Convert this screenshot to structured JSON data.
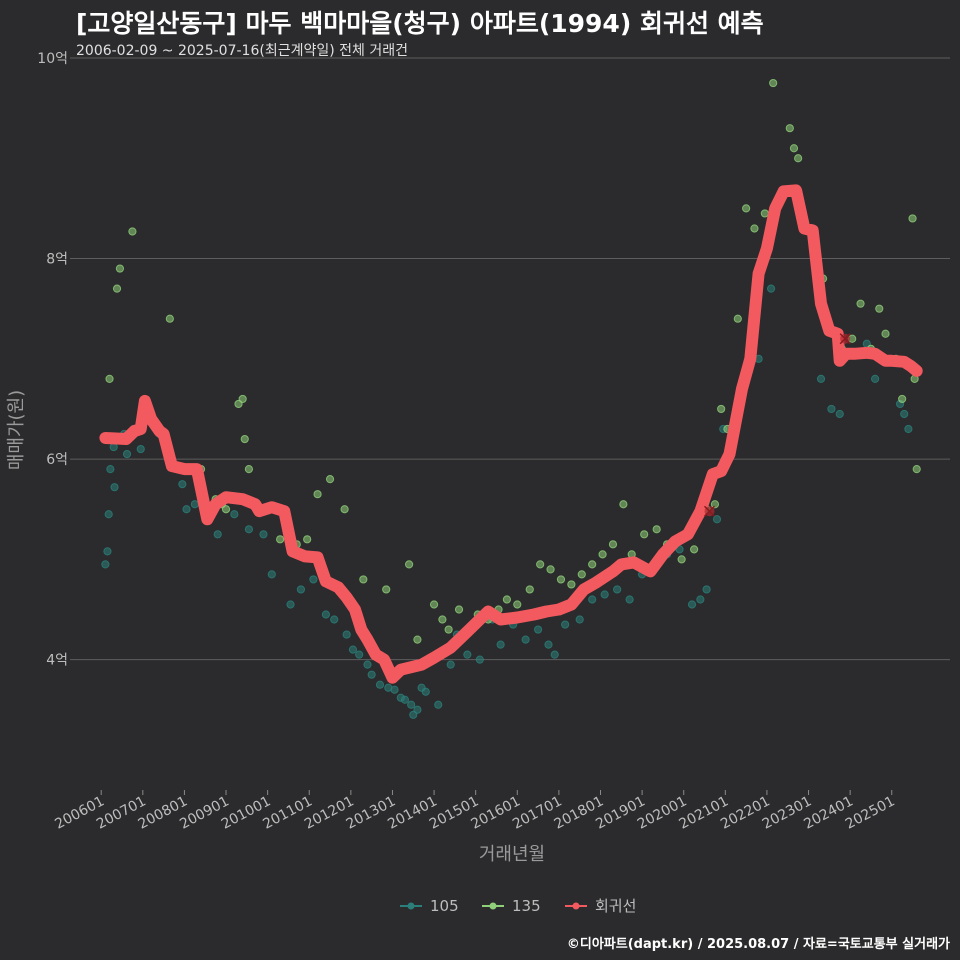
{
  "chart_data": {
    "type": "scatter",
    "title": "[고양일산동구] 마두 백마마을(청구) 아파트(1994) 회귀선 예측",
    "subtitle": "2006-02-09 ~ 2025-07-16(최근계약일) 전체 거래건",
    "xlabel": "거래년월",
    "ylabel": "매매가(원)",
    "ylim": [
      2.7,
      10.0
    ],
    "y_ticks": [
      4,
      6,
      8,
      10
    ],
    "y_tick_labels": [
      "4억",
      "6억",
      "8억",
      "10억"
    ],
    "x_tick_labels": [
      "200601",
      "200701",
      "200801",
      "200901",
      "201001",
      "201101",
      "201201",
      "201301",
      "201401",
      "201501",
      "201601",
      "201701",
      "201801",
      "201901",
      "202001",
      "202101",
      "202201",
      "202301",
      "202401",
      "202501"
    ],
    "colors": {
      "s105": "#2a7f7a",
      "s135": "#8fcf7a",
      "trend": "#f25a5f",
      "grid": "#5e5e5e",
      "background": "#2b2a2c"
    },
    "legend": [
      {
        "key": "s105",
        "label": "105"
      },
      {
        "key": "s135",
        "label": "135"
      },
      {
        "key": "trend",
        "label": "회귀선"
      }
    ],
    "legend_position": "bottom",
    "series": [
      {
        "name": "105",
        "key": "s105",
        "points": [
          [
            2006.1,
            4.95
          ],
          [
            2006.15,
            5.08
          ],
          [
            2006.18,
            5.45
          ],
          [
            2006.22,
            5.9
          ],
          [
            2006.3,
            6.12
          ],
          [
            2006.32,
            5.72
          ],
          [
            2006.55,
            6.25
          ],
          [
            2006.62,
            6.05
          ],
          [
            2006.78,
            6.3
          ],
          [
            2006.95,
            6.1
          ],
          [
            2007.4,
            6.25
          ],
          [
            2007.7,
            5.95
          ],
          [
            2007.95,
            5.75
          ],
          [
            2008.05,
            5.5
          ],
          [
            2008.25,
            5.55
          ],
          [
            2008.8,
            5.25
          ],
          [
            2009.2,
            5.45
          ],
          [
            2009.55,
            5.3
          ],
          [
            2009.9,
            5.25
          ],
          [
            2010.1,
            4.85
          ],
          [
            2010.55,
            4.55
          ],
          [
            2010.8,
            4.7
          ],
          [
            2011.1,
            4.8
          ],
          [
            2011.4,
            4.45
          ],
          [
            2011.6,
            4.4
          ],
          [
            2011.9,
            4.25
          ],
          [
            2012.05,
            4.1
          ],
          [
            2012.2,
            4.05
          ],
          [
            2012.4,
            3.95
          ],
          [
            2012.5,
            3.85
          ],
          [
            2012.7,
            3.75
          ],
          [
            2012.9,
            3.72
          ],
          [
            2013.05,
            3.7
          ],
          [
            2013.2,
            3.62
          ],
          [
            2013.3,
            3.6
          ],
          [
            2013.45,
            3.55
          ],
          [
            2013.5,
            3.45
          ],
          [
            2013.6,
            3.5
          ],
          [
            2013.7,
            3.72
          ],
          [
            2013.8,
            3.68
          ],
          [
            2014.1,
            3.55
          ],
          [
            2014.4,
            3.95
          ],
          [
            2014.55,
            4.25
          ],
          [
            2014.8,
            4.05
          ],
          [
            2015.1,
            4.0
          ],
          [
            2015.4,
            4.4
          ],
          [
            2015.6,
            4.15
          ],
          [
            2015.9,
            4.35
          ],
          [
            2016.2,
            4.2
          ],
          [
            2016.5,
            4.3
          ],
          [
            2016.75,
            4.15
          ],
          [
            2016.9,
            4.05
          ],
          [
            2017.15,
            4.35
          ],
          [
            2017.5,
            4.4
          ],
          [
            2017.8,
            4.6
          ],
          [
            2018.1,
            4.65
          ],
          [
            2018.4,
            4.7
          ],
          [
            2018.7,
            4.6
          ],
          [
            2019.0,
            4.85
          ],
          [
            2019.3,
            4.95
          ],
          [
            2019.6,
            5.05
          ],
          [
            2019.9,
            5.1
          ],
          [
            2020.2,
            4.55
          ],
          [
            2020.4,
            4.6
          ],
          [
            2020.55,
            4.7
          ],
          [
            2020.8,
            5.4
          ],
          [
            2020.95,
            6.3
          ],
          [
            2021.5,
            6.8
          ],
          [
            2021.8,
            7.0
          ],
          [
            2022.05,
            8.2
          ],
          [
            2022.1,
            7.7
          ],
          [
            2023.3,
            6.8
          ],
          [
            2023.55,
            6.5
          ],
          [
            2023.75,
            6.45
          ],
          [
            2024.4,
            7.15
          ],
          [
            2024.6,
            6.8
          ],
          [
            2025.2,
            6.55
          ],
          [
            2025.3,
            6.45
          ],
          [
            2025.4,
            6.3
          ]
        ]
      },
      {
        "name": "135",
        "key": "s135",
        "points": [
          [
            2006.2,
            6.8
          ],
          [
            2006.38,
            7.7
          ],
          [
            2006.45,
            7.9
          ],
          [
            2006.75,
            8.27
          ],
          [
            2007.65,
            7.4
          ],
          [
            2008.4,
            5.9
          ],
          [
            2008.75,
            5.6
          ],
          [
            2008.9,
            5.55
          ],
          [
            2009.0,
            5.5
          ],
          [
            2009.3,
            6.55
          ],
          [
            2009.4,
            6.6
          ],
          [
            2009.45,
            6.2
          ],
          [
            2009.55,
            5.9
          ],
          [
            2010.0,
            5.5
          ],
          [
            2010.3,
            5.2
          ],
          [
            2010.7,
            5.15
          ],
          [
            2010.95,
            5.2
          ],
          [
            2011.2,
            5.65
          ],
          [
            2011.5,
            5.8
          ],
          [
            2011.85,
            5.5
          ],
          [
            2012.3,
            4.8
          ],
          [
            2012.85,
            4.7
          ],
          [
            2013.4,
            4.95
          ],
          [
            2013.6,
            4.2
          ],
          [
            2014.0,
            4.55
          ],
          [
            2014.2,
            4.4
          ],
          [
            2014.35,
            4.3
          ],
          [
            2014.6,
            4.5
          ],
          [
            2014.85,
            4.3
          ],
          [
            2015.05,
            4.45
          ],
          [
            2015.3,
            4.4
          ],
          [
            2015.55,
            4.5
          ],
          [
            2015.75,
            4.6
          ],
          [
            2016.0,
            4.55
          ],
          [
            2016.3,
            4.7
          ],
          [
            2016.55,
            4.95
          ],
          [
            2016.8,
            4.9
          ],
          [
            2017.05,
            4.8
          ],
          [
            2017.3,
            4.75
          ],
          [
            2017.55,
            4.85
          ],
          [
            2017.8,
            4.95
          ],
          [
            2018.05,
            5.05
          ],
          [
            2018.3,
            5.15
          ],
          [
            2018.55,
            5.55
          ],
          [
            2018.75,
            5.05
          ],
          [
            2019.05,
            5.25
          ],
          [
            2019.35,
            5.3
          ],
          [
            2019.6,
            5.15
          ],
          [
            2019.95,
            5.0
          ],
          [
            2020.25,
            5.1
          ],
          [
            2020.55,
            5.5
          ],
          [
            2020.75,
            5.55
          ],
          [
            2020.9,
            6.5
          ],
          [
            2021.05,
            6.3
          ],
          [
            2021.3,
            7.4
          ],
          [
            2021.5,
            8.5
          ],
          [
            2021.7,
            8.3
          ],
          [
            2021.95,
            8.45
          ],
          [
            2022.15,
            9.75
          ],
          [
            2022.55,
            9.3
          ],
          [
            2022.65,
            9.1
          ],
          [
            2022.75,
            9.0
          ],
          [
            2023.1,
            8.3
          ],
          [
            2023.35,
            7.8
          ],
          [
            2023.6,
            7.25
          ],
          [
            2023.8,
            7.1
          ],
          [
            2024.05,
            7.2
          ],
          [
            2024.25,
            7.55
          ],
          [
            2024.5,
            7.1
          ],
          [
            2024.7,
            7.5
          ],
          [
            2024.85,
            7.25
          ],
          [
            2025.1,
            7.0
          ],
          [
            2025.25,
            6.6
          ],
          [
            2025.5,
            8.4
          ],
          [
            2025.55,
            6.8
          ],
          [
            2025.6,
            5.9
          ]
        ]
      },
      {
        "name": "회귀선",
        "key": "trend",
        "points": [
          [
            2006.1,
            6.21
          ],
          [
            2006.6,
            6.2
          ],
          [
            2006.8,
            6.28
          ],
          [
            2006.95,
            6.3
          ],
          [
            2007.05,
            6.58
          ],
          [
            2007.2,
            6.4
          ],
          [
            2007.4,
            6.28
          ],
          [
            2007.5,
            6.25
          ],
          [
            2007.7,
            5.93
          ],
          [
            2008.0,
            5.9
          ],
          [
            2008.3,
            5.9
          ],
          [
            2008.55,
            5.4
          ],
          [
            2008.75,
            5.55
          ],
          [
            2009.0,
            5.62
          ],
          [
            2009.4,
            5.6
          ],
          [
            2009.7,
            5.55
          ],
          [
            2009.8,
            5.48
          ],
          [
            2010.1,
            5.52
          ],
          [
            2010.4,
            5.48
          ],
          [
            2010.6,
            5.08
          ],
          [
            2010.9,
            5.03
          ],
          [
            2011.2,
            5.02
          ],
          [
            2011.4,
            4.78
          ],
          [
            2011.7,
            4.72
          ],
          [
            2011.9,
            4.62
          ],
          [
            2012.1,
            4.5
          ],
          [
            2012.25,
            4.3
          ],
          [
            2012.4,
            4.2
          ],
          [
            2012.6,
            4.05
          ],
          [
            2012.8,
            4.0
          ],
          [
            2013.0,
            3.82
          ],
          [
            2013.2,
            3.9
          ],
          [
            2013.4,
            3.92
          ],
          [
            2013.7,
            3.95
          ],
          [
            2014.0,
            4.02
          ],
          [
            2014.4,
            4.12
          ],
          [
            2014.8,
            4.28
          ],
          [
            2015.1,
            4.4
          ],
          [
            2015.3,
            4.48
          ],
          [
            2015.6,
            4.4
          ],
          [
            2016.0,
            4.42
          ],
          [
            2016.4,
            4.45
          ],
          [
            2016.7,
            4.48
          ],
          [
            2017.0,
            4.5
          ],
          [
            2017.3,
            4.55
          ],
          [
            2017.6,
            4.7
          ],
          [
            2017.9,
            4.77
          ],
          [
            2018.3,
            4.88
          ],
          [
            2018.5,
            4.95
          ],
          [
            2018.8,
            4.97
          ],
          [
            2019.2,
            4.88
          ],
          [
            2019.5,
            5.05
          ],
          [
            2019.8,
            5.18
          ],
          [
            2020.1,
            5.25
          ],
          [
            2020.4,
            5.48
          ],
          [
            2020.7,
            5.85
          ],
          [
            2020.9,
            5.88
          ],
          [
            2021.1,
            6.05
          ],
          [
            2021.4,
            6.7
          ],
          [
            2021.6,
            7.0
          ],
          [
            2021.8,
            7.85
          ],
          [
            2022.0,
            8.1
          ],
          [
            2022.2,
            8.5
          ],
          [
            2022.4,
            8.67
          ],
          [
            2022.7,
            8.68
          ],
          [
            2022.9,
            8.3
          ],
          [
            2023.1,
            8.28
          ],
          [
            2023.3,
            7.55
          ],
          [
            2023.5,
            7.28
          ],
          [
            2023.7,
            7.25
          ],
          [
            2023.75,
            6.98
          ],
          [
            2023.9,
            7.05
          ],
          [
            2024.1,
            7.05
          ],
          [
            2024.4,
            7.06
          ],
          [
            2024.6,
            7.05
          ],
          [
            2024.85,
            6.98
          ],
          [
            2025.0,
            6.98
          ],
          [
            2025.3,
            6.97
          ],
          [
            2025.45,
            6.93
          ],
          [
            2025.6,
            6.88
          ]
        ]
      }
    ],
    "markers": [
      {
        "x": 2020.62,
        "y": 5.48,
        "label": "x"
      },
      {
        "x": 2023.88,
        "y": 7.2,
        "label": "x"
      }
    ]
  },
  "credit": "©디아파트(dapt.kr) / 2025.08.07 / 자료=국토교통부 실거래가"
}
